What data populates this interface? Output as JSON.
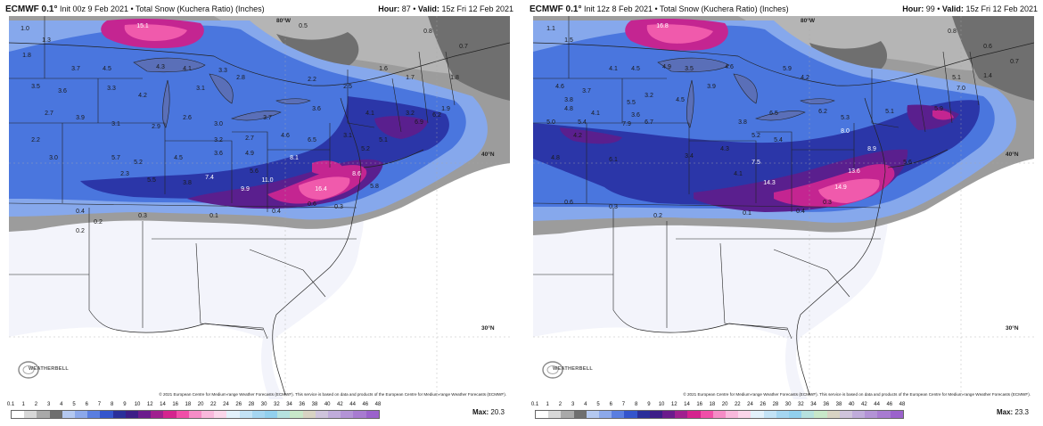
{
  "panels": [
    {
      "title": "ECMWF 0.1°",
      "subtitle": "Init 00z 9 Feb 2021 • Total Snow (Kuchera Ratio) (Inches)",
      "hour_label": "Hour:",
      "hour": "87",
      "valid_label": "Valid:",
      "valid": "15z Fri 12 Feb 2021",
      "max_label": "Max:",
      "max": "20.3",
      "snow_labels": [
        "1.0",
        "1.3",
        "1.8",
        "15.1",
        "0.8",
        "0.5",
        "0.7",
        "3.7",
        "4.5",
        "4.3",
        "4.1",
        "3.3",
        "3.5",
        "3.6",
        "3.3",
        "4.2",
        "3.1",
        "2.8",
        "2.2",
        "2.5",
        "1.6",
        "1.7",
        "1.8",
        "2.7",
        "3.9",
        "3.1",
        "2.9",
        "2.6",
        "3.0",
        "3.7",
        "3.6",
        "4.1",
        "3.2",
        "1.9",
        "3.1",
        "3.2",
        "2.7",
        "4.6",
        "6.5",
        "5.2",
        "6.9",
        "6.2",
        "5.1",
        "8.1",
        "2.2",
        "3.0",
        "5.7",
        "5.2",
        "4.5",
        "3.6",
        "4.9",
        "2.3",
        "5.5",
        "3.8",
        "7.4",
        "5.6",
        "11.0",
        "16.4",
        "9.9",
        "8.6",
        "5.8",
        "0.4",
        "0.3",
        "0.2",
        "0.1",
        "0.4",
        "0.6",
        "0.3",
        "0.2"
      ],
      "lat_labels": [
        "40°N",
        "30°N"
      ],
      "lon_label": "80°W",
      "logo": "WEATHERBELL",
      "credit": "© 2021 European Centre for Medium-range Weather Forecasts (ECMWF). This service is based on data and products of the European Centre for Medium-range Weather Forecasts (ECMWF)."
    },
    {
      "title": "ECMWF 0.1°",
      "subtitle": "Init 12z 8 Feb 2021 • Total Snow (Kuchera Ratio) (Inches)",
      "hour_label": "Hour:",
      "hour": "99",
      "valid_label": "Valid:",
      "valid": "15z Fri 12 Feb 2021",
      "max_label": "Max:",
      "max": "23.3",
      "snow_labels": [
        "1.1",
        "1.5",
        "16.8",
        "0.8",
        "0.6",
        "0.7",
        "1.4",
        "4.1",
        "4.5",
        "4.9",
        "3.5",
        "4.6",
        "5.9",
        "4.2",
        "5.1",
        "4.6",
        "3.7",
        "3.9",
        "3.8",
        "3.2",
        "4.5",
        "5.5",
        "4.8",
        "4.1",
        "3.6",
        "6.5",
        "6.7",
        "7.0",
        "5.1",
        "5.9",
        "5.0",
        "5.4",
        "7.9",
        "6.2",
        "5.3",
        "3.8",
        "4.2",
        "6.1",
        "3.4",
        "4.3",
        "5.2",
        "5.4",
        "7.5",
        "8.0",
        "8.9",
        "4.8",
        "14.3",
        "14.9",
        "13.6",
        "5.6",
        "4.1",
        "0.6",
        "0.3",
        "0.2",
        "0.1",
        "0.4",
        "0.3"
      ],
      "lat_labels": [
        "40°N",
        "30°N"
      ],
      "lon_label": "80°W",
      "logo": "WEATHERBELL",
      "credit": "© 2021 European Centre for Medium-range Weather Forecasts (ECMWF). This service is based on data and products of the European Centre for Medium-range Weather Forecasts (ECMWF)."
    }
  ],
  "colorbar": {
    "ticks": [
      "0.1",
      "1",
      "2",
      "3",
      "4",
      "5",
      "6",
      "7",
      "8",
      "9",
      "10",
      "12",
      "14",
      "16",
      "18",
      "20",
      "22",
      "24",
      "26",
      "28",
      "30",
      "32",
      "34",
      "36",
      "38",
      "40",
      "42",
      "44",
      "46",
      "48"
    ],
    "colors": [
      "#ffffff",
      "#d7d7d7",
      "#a9a9a9",
      "#6f6f6f",
      "#b4c8f0",
      "#8ca8ea",
      "#5a7ee0",
      "#3455cc",
      "#2a2f9a",
      "#3d1d87",
      "#6b1b8c",
      "#a0208f",
      "#d4248e",
      "#f04fa8",
      "#f58cc6",
      "#f9b8dc",
      "#fbd6ea",
      "#e3f1fb",
      "#c3e3f6",
      "#a5d6f1",
      "#92d0ee",
      "#b6e2df",
      "#c8e8c9",
      "#d8d3c3",
      "#cfc4dc",
      "#c0acdb",
      "#b393d6",
      "#a87bd1",
      "#9b62cc"
    ]
  },
  "colors": {
    "land": "#f3f4fb",
    "ocean": "#ffffff",
    "gray_snow": "#9a9a9a",
    "light_blue": "#7fa4ea",
    "mid_blue": "#3f6ad8",
    "dark_blue": "#2b34a3",
    "purple": "#5a1f8e",
    "magenta": "#c42591",
    "pink": "#f05aac",
    "borders": "#222222"
  }
}
